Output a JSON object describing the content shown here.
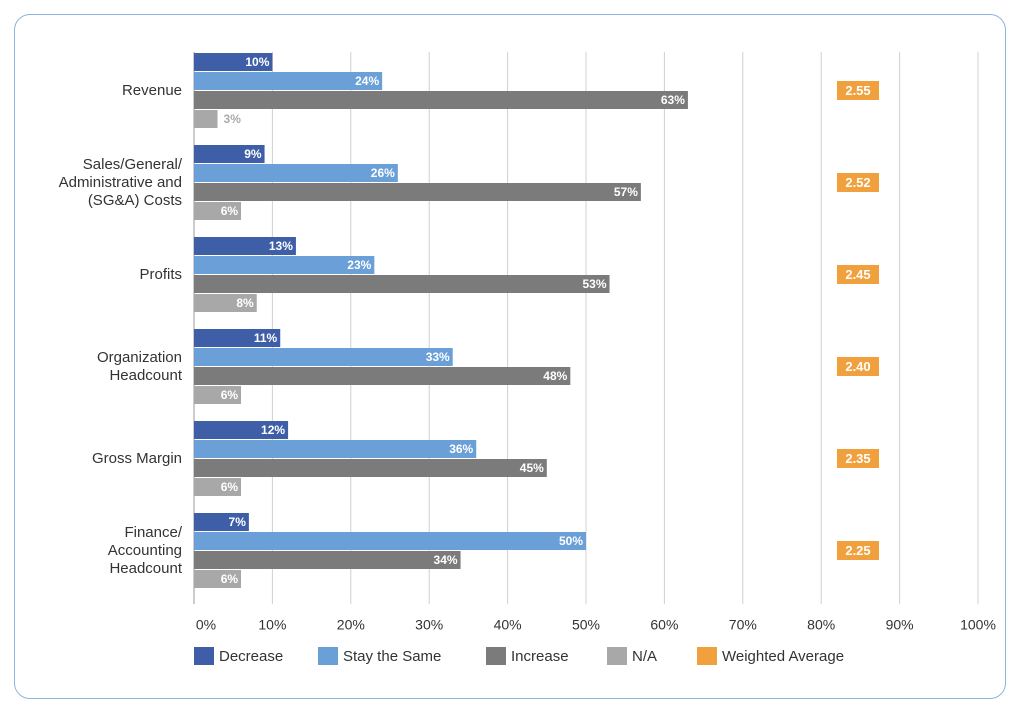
{
  "chart_data": {
    "type": "bar",
    "orientation": "horizontal",
    "categories": [
      "Revenue",
      "Sales/General/\nAdministrative and\n(SG&A) Costs",
      "Profits",
      "Organization\nHeadcount",
      "Gross Margin",
      "Finance/\nAccounting\nHeadcount"
    ],
    "series": [
      {
        "name": "Decrease",
        "color": "#3e5ea8",
        "values": [
          10,
          9,
          13,
          11,
          12,
          7
        ],
        "value_labels": [
          "10%",
          "9%",
          "13%",
          "11%",
          "12%",
          "7%"
        ]
      },
      {
        "name": "Stay the Same",
        "color": "#6a9fd8",
        "values": [
          24,
          26,
          23,
          33,
          36,
          50
        ],
        "value_labels": [
          "24%",
          "26%",
          "23%",
          "33%",
          "36%",
          "50%"
        ]
      },
      {
        "name": "Increase",
        "color": "#7b7b7b",
        "values": [
          63,
          57,
          53,
          48,
          45,
          34
        ],
        "value_labels": [
          "63%",
          "57%",
          "53%",
          "48%",
          "45%",
          "34%"
        ]
      },
      {
        "name": "N/A",
        "color": "#a8a8a8",
        "values": [
          3,
          6,
          8,
          6,
          6,
          6
        ],
        "value_labels": [
          "3%",
          "6%",
          "8%",
          "6%",
          "6%",
          "6%"
        ]
      }
    ],
    "weighted_average": {
      "name": "Weighted Average",
      "color": "#f0a03c",
      "values": [
        2.55,
        2.52,
        2.45,
        2.4,
        2.35,
        2.25
      ],
      "value_labels": [
        "2.55",
        "2.52",
        "2.45",
        "2.40",
        "2.35",
        "2.25"
      ]
    },
    "xlim": [
      0,
      100
    ],
    "xticks": [
      {
        "value": 0,
        "label": "0%"
      },
      {
        "value": 10,
        "label": "10%"
      },
      {
        "value": 20,
        "label": "20%"
      },
      {
        "value": 30,
        "label": "30%"
      },
      {
        "value": 40,
        "label": "40%"
      },
      {
        "value": 50,
        "label": "50%"
      },
      {
        "value": 60,
        "label": "60%"
      },
      {
        "value": 70,
        "label": "70%"
      },
      {
        "value": 80,
        "label": "80%"
      },
      {
        "value": 90,
        "label": "90%"
      },
      {
        "value": 100,
        "label": "100%"
      }
    ],
    "grid": true,
    "legend": "bottom"
  }
}
